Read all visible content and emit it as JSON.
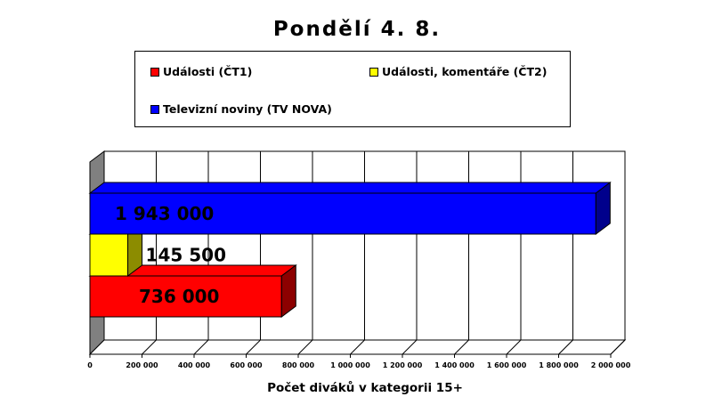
{
  "title": "Pondělí 4. 8.",
  "legend": [
    {
      "name": "Události (ČT1)",
      "color": "#ff0000"
    },
    {
      "name": "Události, komentáře (ČT2)",
      "color": "#ffff00"
    },
    {
      "name": "Televizní noviny (TV NOVA)",
      "color": "#0000ff"
    }
  ],
  "chart_data": {
    "type": "bar",
    "orientation": "horizontal",
    "style": "3d",
    "title": "Pondělí 4. 8.",
    "xlabel": "Počet diváků v kategorii 15+",
    "ylabel": "",
    "xlim": [
      0,
      2000000
    ],
    "ticks": [
      0,
      200000,
      400000,
      600000,
      800000,
      1000000,
      1200000,
      1400000,
      1600000,
      1800000,
      2000000
    ],
    "tick_labels": [
      "0",
      "200 000",
      "400 000",
      "600 000",
      "800 000",
      "1 000 000",
      "1 200 000",
      "1 400 000",
      "1 600 000",
      "1 800 000",
      "2 000 000"
    ],
    "grid": true,
    "legend_position": "top",
    "series": [
      {
        "name": "Události (ČT1)",
        "value": 736000,
        "label": "736 000",
        "color": "#ff0000"
      },
      {
        "name": "Události, komentáře (ČT2)",
        "value": 145500,
        "label": "145 500",
        "color": "#ffff00"
      },
      {
        "name": "Televizní noviny (TV NOVA)",
        "value": 1943000,
        "label": "1 943 000",
        "color": "#0000ff"
      }
    ]
  }
}
